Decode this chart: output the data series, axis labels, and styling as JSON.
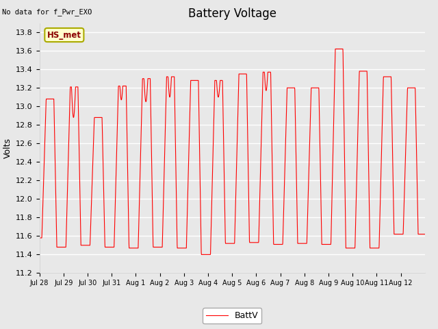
{
  "title": "Battery Voltage",
  "topleft_text": "No data for f_Pwr_EXO",
  "ylabel": "Volts",
  "legend_label": "BattV",
  "line_color": "red",
  "background_color": "#e8e8e8",
  "plot_bg_color": "#e8e8e8",
  "ylim": [
    11.2,
    13.9
  ],
  "yticks": [
    11.2,
    11.4,
    11.6,
    11.8,
    12.0,
    12.2,
    12.4,
    12.6,
    12.8,
    13.0,
    13.2,
    13.4,
    13.6,
    13.8
  ],
  "xtick_labels": [
    "Jul 28",
    "Jul 29",
    "Jul 30",
    "Jul 31",
    "Aug 1",
    "Aug 2",
    "Aug 3",
    "Aug 4",
    "Aug 5",
    "Aug 6",
    "Aug 7",
    "Aug 8",
    "Aug 9",
    "Aug 10",
    "Aug 11",
    "Aug 12"
  ],
  "legend_box_color": "#ffffcc",
  "legend_box_edge": "#aaaa00",
  "hs_met_label": "HS_met",
  "title_fontsize": 12,
  "label_fontsize": 9,
  "tick_fontsize": 8,
  "n_days": 16
}
